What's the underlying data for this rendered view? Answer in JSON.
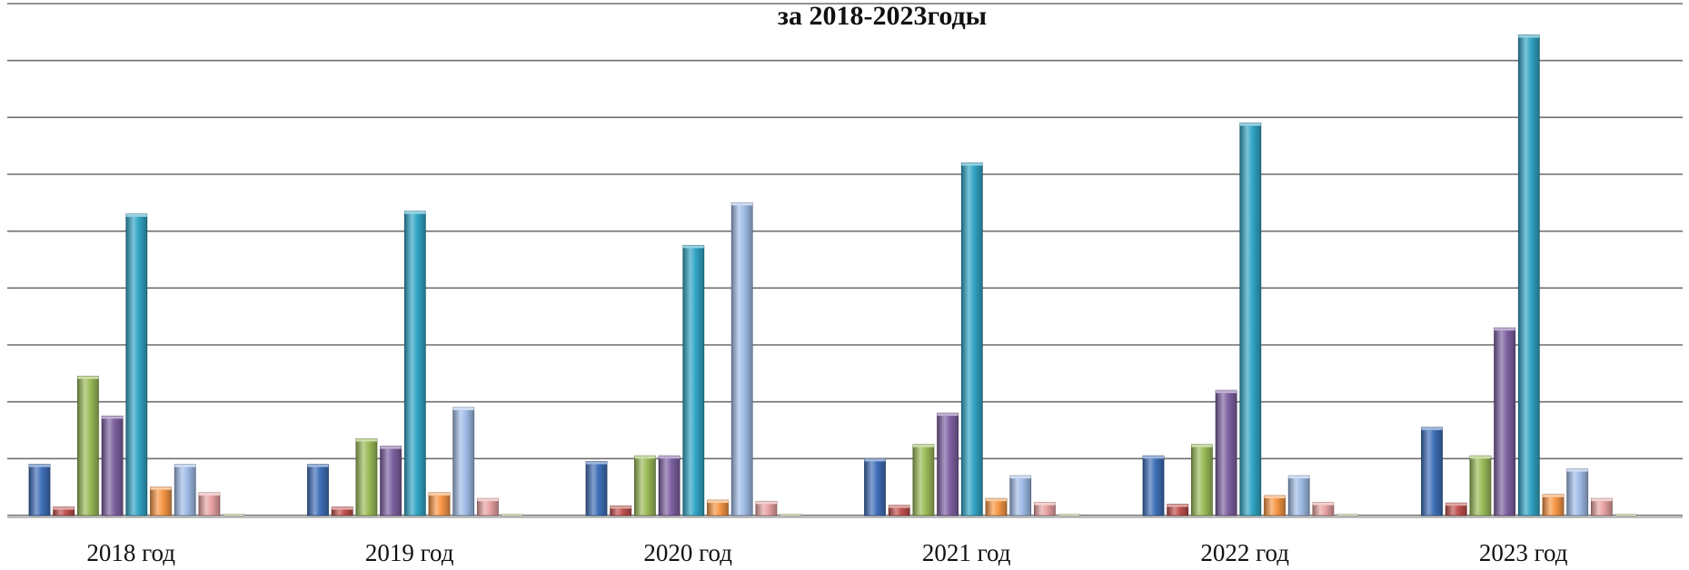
{
  "chart_data": {
    "type": "bar",
    "title": "за 2018-2023годы",
    "xlabel": "",
    "ylabel": "",
    "ylim": [
      0,
      9
    ],
    "grid": true,
    "legend": "none",
    "categories": [
      "2018 год",
      "2019 год",
      "2020 год",
      "2021 год",
      "2022 год",
      "2023 год"
    ],
    "series": [
      {
        "color": "#3f6fb8",
        "values": [
          0.9,
          0.9,
          0.95,
          1.0,
          1.05,
          1.55
        ]
      },
      {
        "color": "#c0504d",
        "values": [
          0.15,
          0.15,
          0.17,
          0.18,
          0.2,
          0.22
        ]
      },
      {
        "color": "#9bbb59",
        "values": [
          2.45,
          1.35,
          1.05,
          1.25,
          1.25,
          1.05
        ]
      },
      {
        "color": "#7e61a1",
        "values": [
          1.75,
          1.22,
          1.05,
          1.8,
          2.2,
          3.3
        ]
      },
      {
        "color": "#31a4c4",
        "values": [
          5.3,
          5.35,
          4.75,
          6.2,
          6.9,
          8.45
        ]
      },
      {
        "color": "#f79646",
        "values": [
          0.5,
          0.4,
          0.27,
          0.3,
          0.35,
          0.37
        ]
      },
      {
        "color": "#9fbbe6",
        "values": [
          0.9,
          1.9,
          5.5,
          0.7,
          0.7,
          0.82
        ]
      },
      {
        "color": "#e8a2a2",
        "values": [
          0.4,
          0.3,
          0.25,
          0.23,
          0.23,
          0.3
        ]
      },
      {
        "color": "#cfd8a8",
        "values": [
          0.02,
          0.02,
          0.02,
          0.02,
          0.02,
          0.02
        ]
      }
    ]
  }
}
